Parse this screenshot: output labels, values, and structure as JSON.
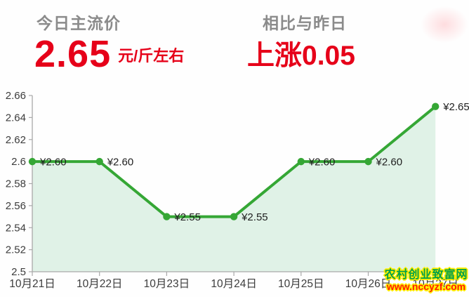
{
  "header": {
    "today": {
      "label": "今日主流价",
      "price": "2.65",
      "unit": "元/斤左右"
    },
    "compare": {
      "label": "相比与昨日",
      "change": "上涨0.05"
    }
  },
  "colors": {
    "accent_red": "#e60019",
    "label_gray": "#8b8b8b",
    "line_green": "#35a735",
    "area_fill": "#ddf1e4",
    "axis_gray": "#a9a9a9",
    "tick_text": "#3c3c3c",
    "point_label_text": "#202020"
  },
  "watermark": {
    "site_name": "农村创业致富网",
    "site_url": "www.nccyzf.com",
    "name_color": "#00a04a",
    "url_color": "#ff1e00",
    "outline_color": "#ffee00"
  },
  "chart_data": {
    "type": "area",
    "title": "",
    "xlabel": "",
    "ylabel": "",
    "categories": [
      "10月21日",
      "10月22日",
      "10月23日",
      "10月24日",
      "10月25日",
      "10月26日",
      "10月27日"
    ],
    "values": [
      2.6,
      2.6,
      2.55,
      2.55,
      2.6,
      2.6,
      2.65
    ],
    "point_labels": [
      "¥2.60",
      "¥2.60",
      "¥2.55",
      "¥2.55",
      "¥2.60",
      "¥2.60",
      "¥2.65"
    ],
    "ylim": [
      2.5,
      2.66
    ],
    "ytick_values": [
      2.5,
      2.52,
      2.54,
      2.56,
      2.58,
      2.6,
      2.62,
      2.64,
      2.66
    ],
    "ytick_labels": [
      "2.5",
      "2.52",
      "2.54",
      "2.56",
      "2.58",
      "2.6",
      "2.62",
      "2.64",
      "2.66"
    ],
    "grid": false,
    "legend": null
  }
}
